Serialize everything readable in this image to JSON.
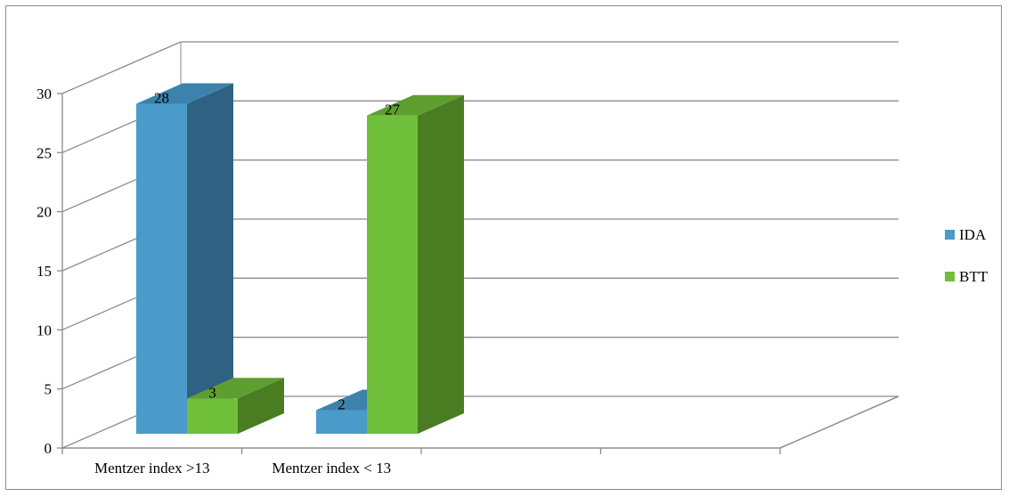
{
  "chart_data": {
    "type": "bar",
    "title": "",
    "xlabel": "",
    "ylabel": "",
    "ylim": [
      0,
      30
    ],
    "yticks": [
      0,
      5,
      10,
      15,
      20,
      25,
      30
    ],
    "grid": true,
    "legend_position": "right",
    "categories": [
      "Mentzer index >13",
      "Mentzer index < 13"
    ],
    "series": [
      {
        "name": "IDA",
        "values": [
          28,
          2
        ],
        "color": "#4A9ACA",
        "top_color": "#3D82AC",
        "side_color": "#2F6282"
      },
      {
        "name": "BTT",
        "values": [
          3,
          27
        ],
        "color": "#70BF3A",
        "top_color": "#5E9E2F",
        "side_color": "#4A7D22"
      }
    ]
  }
}
